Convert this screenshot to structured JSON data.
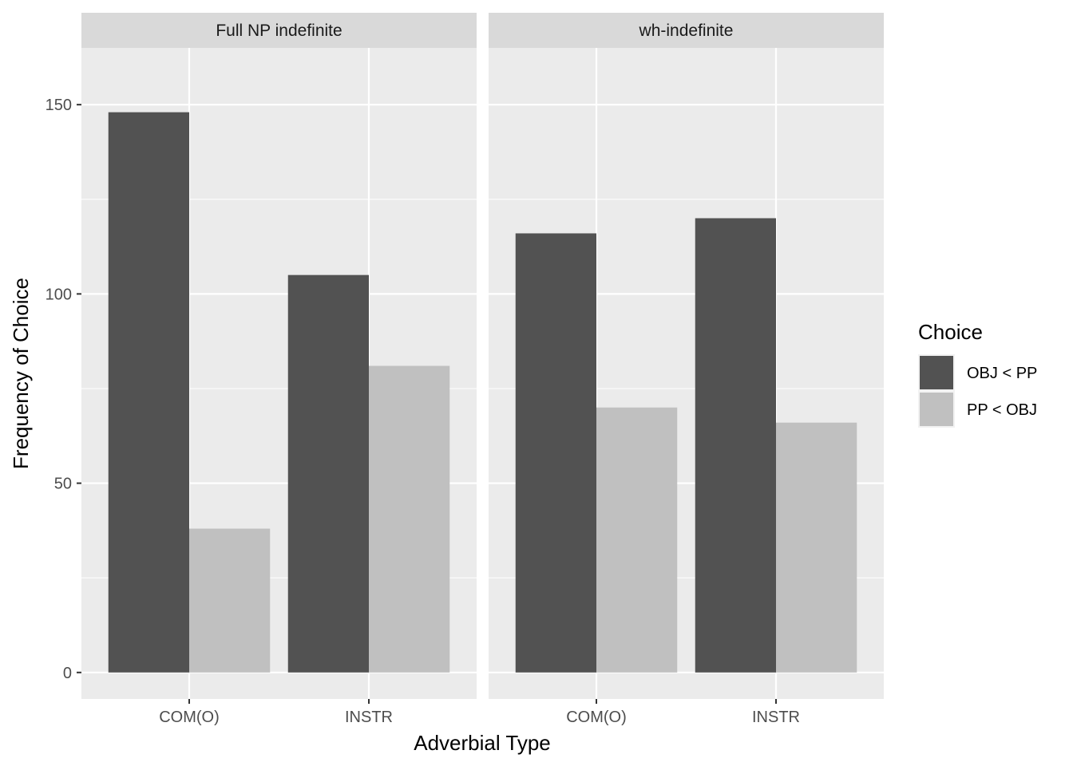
{
  "chart_data": {
    "type": "bar",
    "facets": [
      "Full NP indefinite",
      "wh-indefinite"
    ],
    "categories": [
      "COM(O)",
      "INSTR"
    ],
    "series": [
      {
        "name": "OBJ < PP",
        "color": "#525252",
        "values": [
          [
            148,
            105
          ],
          [
            116,
            120
          ]
        ]
      },
      {
        "name": "PP < OBJ",
        "color": "#c0c0c0",
        "values": [
          [
            38,
            81
          ],
          [
            70,
            66
          ]
        ]
      }
    ],
    "xlabel": "Adverbial Type",
    "ylabel": "Frequency of Choice",
    "ylim": [
      -7,
      165
    ],
    "yticks": [
      0,
      50,
      100,
      150
    ],
    "grid": true,
    "legend": {
      "title": "Choice",
      "position": "right"
    }
  }
}
